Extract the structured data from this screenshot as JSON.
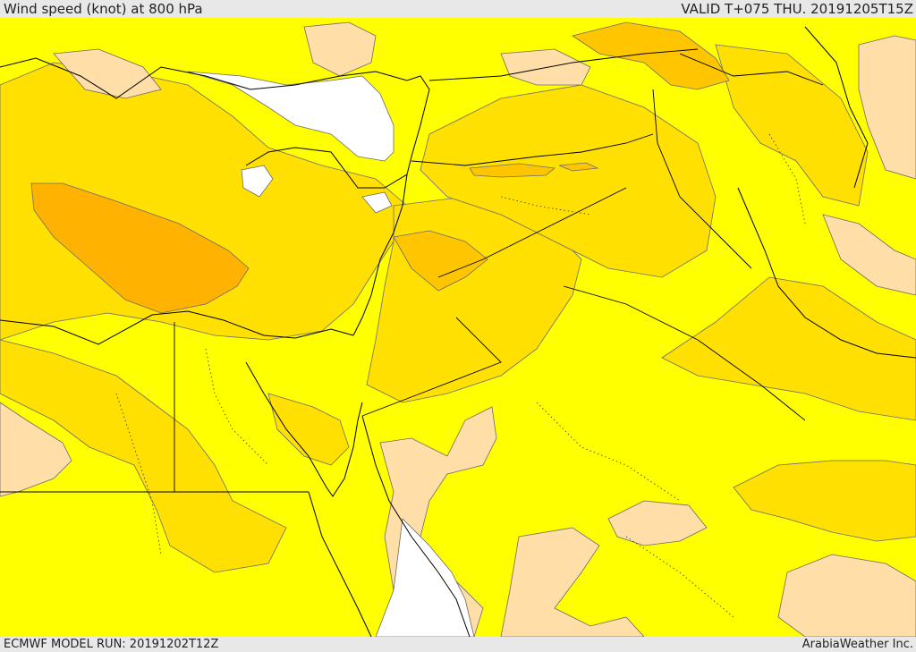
{
  "header": {
    "title": "Wind speed (knot) at 800 hPa",
    "valid": "VALID T+075 THU. 20191205T15Z"
  },
  "footer": {
    "model_run": "ECMWF MODEL RUN: 20191202T12Z",
    "credit": "ArabiaWeather Inc."
  },
  "colors": {
    "background_band": "#e8e8e8",
    "calm": "#ffffff",
    "light": "#ffdea8",
    "yellow": "#ffff00",
    "gold": "#ffe000",
    "amber": "#ffc600",
    "orange": "#ffb300",
    "contour": "#6b6b6b",
    "border": "#000000"
  }
}
